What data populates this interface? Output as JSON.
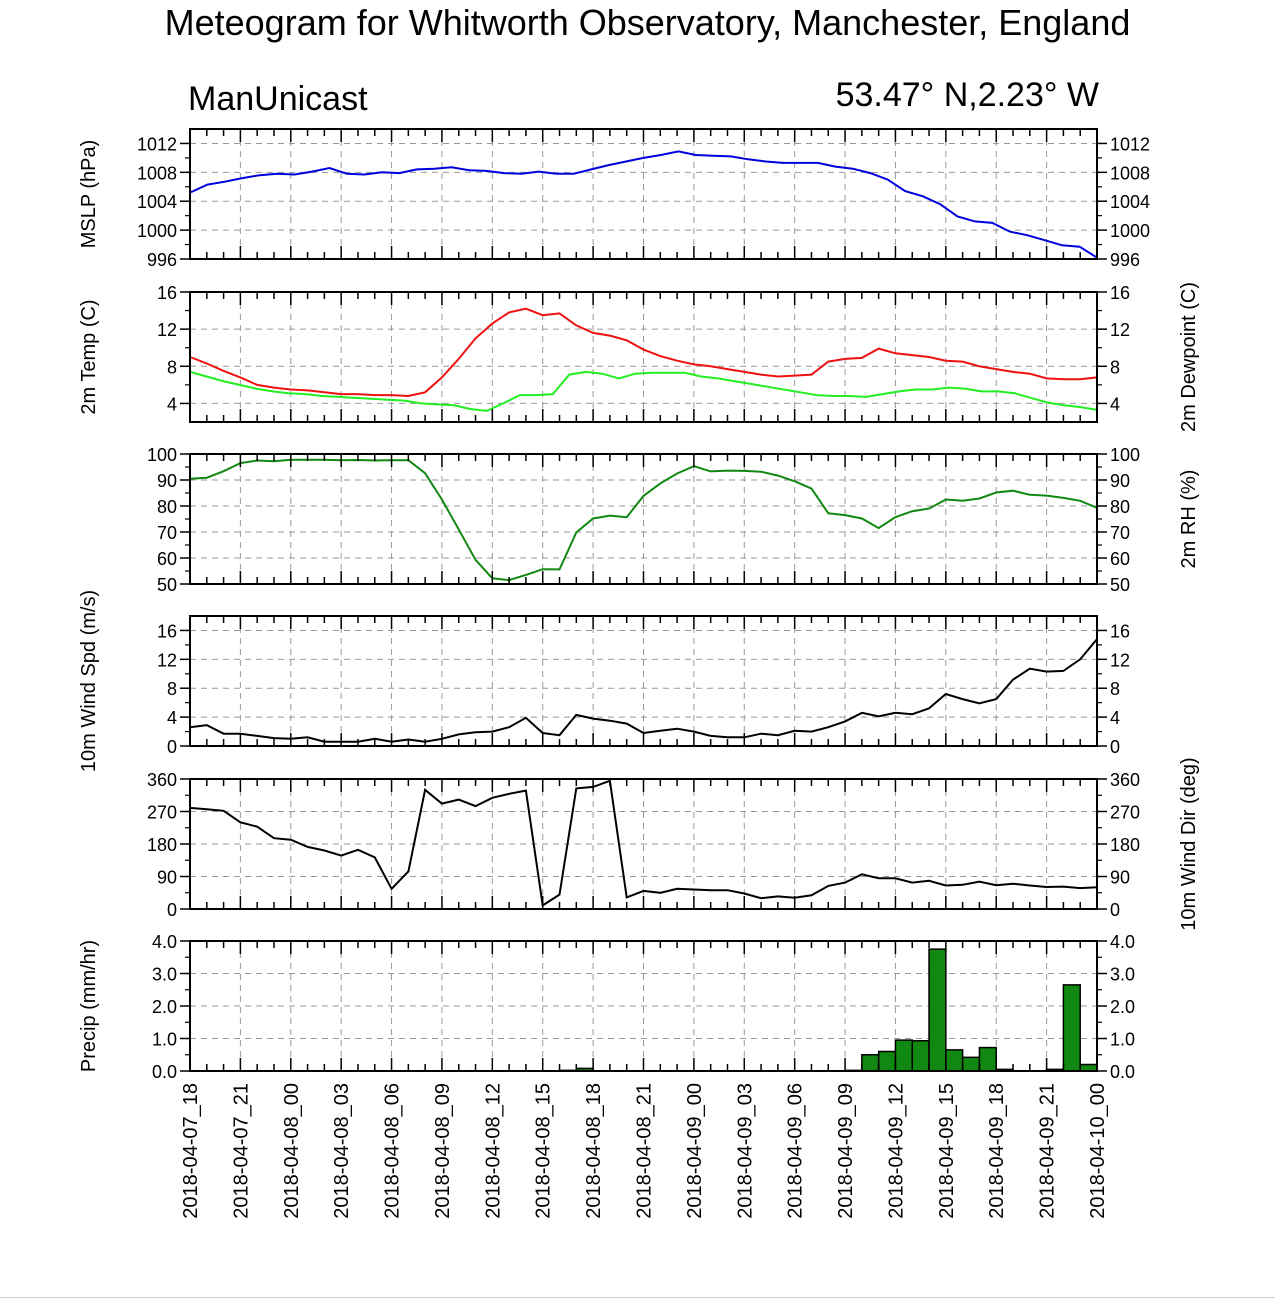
{
  "header": {
    "title": "Meteogram for Whitworth Observatory, Manchester, England",
    "org": "ManUnicast",
    "coords": "53.47° N,2.23° W"
  },
  "chart_data": {
    "type": "line",
    "times": [
      "2018-04-07_18",
      "2018-04-07_21",
      "2018-04-08_00",
      "2018-04-08_03",
      "2018-04-08_06",
      "2018-04-08_09",
      "2018-04-08_12",
      "2018-04-08_15",
      "2018-04-08_18",
      "2018-04-08_21",
      "2018-04-09_00",
      "2018-04-09_03",
      "2018-04-09_06",
      "2018-04-09_09",
      "2018-04-09_12",
      "2018-04-09_15",
      "2018-04-09_18",
      "2018-04-09_21",
      "2018-04-10_00"
    ],
    "panels": [
      {
        "id": "mslp",
        "type": "line",
        "ylabel_left": "MSLP (hPa)",
        "ylabel_right": "",
        "ylim": [
          996,
          1014
        ],
        "ticks": [
          996,
          1000,
          1004,
          1008,
          1012
        ],
        "tick_labels": [
          "996",
          "1000",
          "1004",
          "1008",
          "1012"
        ],
        "right_ticks": true,
        "series": [
          {
            "color": "#0000dd",
            "values": [
              1005.2,
              1006.3,
              1006.7,
              1007.2,
              1007.6,
              1007.8,
              1007.7,
              1008.1,
              1008.6,
              1007.8,
              1007.7,
              1008.0,
              1007.9,
              1008.4,
              1008.5,
              1008.7,
              1008.3,
              1008.2,
              1007.9,
              1007.8,
              1008.1,
              1007.8,
              1007.8,
              1008.4,
              1009.0,
              1009.5,
              1010.0,
              1010.4,
              1010.9,
              1010.4,
              1010.3,
              1010.2,
              1009.8,
              1009.5,
              1009.3,
              1009.3,
              1009.3,
              1008.8,
              1008.5,
              1007.9,
              1007.0,
              1005.4,
              1004.7,
              1003.6,
              1001.9,
              1001.2,
              1001.0,
              999.8,
              999.3,
              998.6,
              997.9,
              997.7,
              996.2
            ]
          }
        ]
      },
      {
        "id": "temp",
        "type": "line",
        "ylabel_left": "2m Temp (C)",
        "ylabel_right": "2m Dewpoint (C)",
        "ylim": [
          2,
          16
        ],
        "ticks": [
          4,
          8,
          12,
          16
        ],
        "tick_labels": [
          "4",
          "8",
          "12",
          "16"
        ],
        "right_ticks": true,
        "series": [
          {
            "color": "#ee1111",
            "values": [
              9.0,
              8.3,
              7.5,
              6.8,
              6.0,
              5.7,
              5.5,
              5.4,
              5.2,
              5.0,
              5.0,
              4.9,
              4.9,
              4.8,
              5.2,
              6.8,
              8.8,
              11.0,
              12.6,
              13.8,
              14.2,
              13.5,
              13.7,
              12.4,
              11.6,
              11.3,
              10.8,
              9.8,
              9.1,
              8.6,
              8.2,
              8.0,
              7.7,
              7.4,
              7.1,
              6.9,
              7.0,
              7.1,
              8.5,
              8.8,
              8.9,
              9.9,
              9.4,
              9.2,
              9.0,
              8.6,
              8.5,
              8.0,
              7.7,
              7.4,
              7.2,
              6.7,
              6.6,
              6.6,
              6.8
            ]
          },
          {
            "color": "#22ee22",
            "values": [
              7.4,
              6.9,
              6.4,
              6.0,
              5.6,
              5.3,
              5.1,
              5.0,
              4.8,
              4.7,
              4.6,
              4.5,
              4.4,
              4.3,
              4.0,
              3.9,
              3.8,
              3.4,
              3.2,
              4.0,
              4.9,
              4.9,
              5.0,
              7.1,
              7.4,
              7.2,
              6.7,
              7.2,
              7.3,
              7.3,
              7.3,
              6.9,
              6.7,
              6.4,
              6.1,
              5.8,
              5.5,
              5.2,
              4.9,
              4.8,
              4.8,
              4.7,
              5.0,
              5.3,
              5.5,
              5.5,
              5.7,
              5.6,
              5.3,
              5.3,
              5.1,
              4.6,
              4.1,
              3.8,
              3.6,
              3.3
            ]
          }
        ]
      },
      {
        "id": "rh",
        "type": "line",
        "ylabel_left": "",
        "ylabel_right": "2m RH (%)",
        "ylim": [
          50,
          100
        ],
        "ticks": [
          50,
          60,
          70,
          80,
          90,
          100
        ],
        "tick_labels": [
          "50",
          "60",
          "70",
          "80",
          "90",
          "100"
        ],
        "right_ticks": true,
        "series": [
          {
            "color": "#118811",
            "values": [
              90.5,
              90.9,
              93.4,
              96.5,
              97.5,
              97.2,
              97.8,
              97.8,
              97.8,
              97.6,
              97.7,
              97.5,
              97.6,
              97.6,
              92.6,
              82.5,
              71.0,
              59.3,
              52.2,
              51.5,
              53.5,
              55.7,
              55.6,
              69.8,
              75.2,
              76.3,
              75.7,
              83.9,
              88.7,
              92.5,
              95.3,
              93.3,
              93.6,
              93.5,
              93.2,
              91.7,
              89.5,
              86.7,
              77.2,
              76.5,
              75.2,
              71.5,
              75.7,
              78.0,
              79.0,
              82.5,
              82.0,
              82.9,
              85.2,
              85.9,
              84.3,
              84.0,
              83.1,
              82.0,
              79.3
            ]
          }
        ]
      },
      {
        "id": "wind",
        "type": "line",
        "ylabel_left": "10m Wind Spd (m/s)",
        "ylabel_right": "",
        "ylim": [
          0,
          18
        ],
        "ticks": [
          0,
          4,
          8,
          12,
          16
        ],
        "tick_labels": [
          "0",
          "4",
          "8",
          "12",
          "16"
        ],
        "right_ticks": true,
        "series": [
          {
            "color": "#000000",
            "values": [
              2.6,
              2.9,
              1.7,
              1.7,
              1.4,
              1.1,
              1.0,
              1.2,
              0.6,
              0.6,
              0.6,
              1.0,
              0.6,
              0.9,
              0.6,
              1.0,
              1.6,
              1.9,
              2.0,
              2.6,
              3.9,
              1.8,
              1.5,
              4.3,
              3.8,
              3.5,
              3.1,
              1.8,
              2.1,
              2.4,
              2.0,
              1.4,
              1.2,
              1.2,
              1.7,
              1.5,
              2.1,
              2.0,
              2.6,
              3.4,
              4.6,
              4.1,
              4.6,
              4.4,
              5.2,
              7.2,
              6.5,
              5.9,
              6.5,
              9.2,
              10.7,
              10.3,
              10.4,
              12.0,
              14.8
            ]
          }
        ]
      },
      {
        "id": "dir",
        "type": "line",
        "ylabel_left": "",
        "ylabel_right": "10m Wind Dir (deg)",
        "ylim": [
          0,
          360
        ],
        "ticks": [
          0,
          90,
          180,
          270,
          360
        ],
        "tick_labels": [
          "0",
          "90",
          "180",
          "270",
          "360"
        ],
        "right_ticks": true,
        "series": [
          {
            "color": "#000000",
            "values": [
              280,
              276,
              272,
              240,
              228,
              196,
              192,
              172,
              162,
              148,
              164,
              143,
              56,
              104,
              330,
              292,
              303,
              285,
              308,
              319,
              328,
              10,
              40,
              334,
              338,
              355,
              32,
              50,
              45,
              56,
              54,
              52,
              52,
              43,
              30,
              35,
              31,
              38,
              64,
              73,
              96,
              85,
              85,
              73,
              78,
              65,
              67,
              76,
              66,
              70,
              65,
              61,
              62,
              58,
              60
            ]
          }
        ]
      },
      {
        "id": "precip",
        "type": "bar",
        "ylabel_left": "Precip (mm/hr)",
        "ylabel_right": "",
        "ylim": [
          0,
          4
        ],
        "ticks": [
          0,
          1,
          2,
          3,
          4
        ],
        "tick_labels": [
          "0.0",
          "1.0",
          "2.0",
          "3.0",
          "4.0"
        ],
        "right_ticks": true,
        "series": [
          {
            "color": "#118811",
            "values": [
              0,
              0,
              0,
              0,
              0,
              0,
              0,
              0,
              0,
              0,
              0,
              0,
              0,
              0,
              0,
              0,
              0,
              0,
              0,
              0,
              0,
              0,
              0.02,
              0.08,
              0,
              0,
              0,
              0,
              0,
              0,
              0,
              0,
              0,
              0,
              0,
              0,
              0,
              0,
              0,
              0.02,
              0.5,
              0.6,
              0.95,
              0.93,
              3.75,
              0.65,
              0.42,
              0.72,
              0.05,
              0,
              0,
              0.05,
              2.65,
              0.2
            ]
          }
        ]
      }
    ]
  }
}
